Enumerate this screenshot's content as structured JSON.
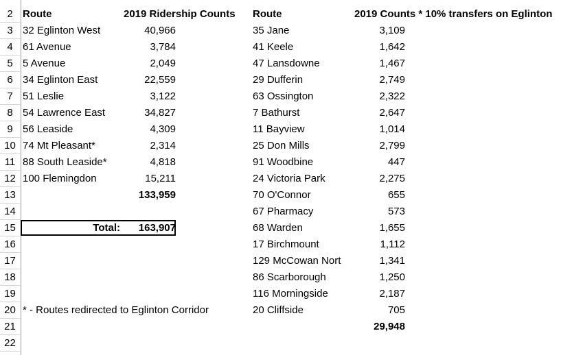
{
  "sheet": {
    "row_numbers": [
      "2",
      "3",
      "4",
      "5",
      "6",
      "7",
      "8",
      "9",
      "10",
      "11",
      "12",
      "13",
      "14",
      "15",
      "16",
      "17",
      "18",
      "19",
      "20",
      "21",
      "22"
    ],
    "headers": {
      "col_a": "Route",
      "col_b": "2019 Ridership Counts",
      "col_c": "Route",
      "col_d": "2019 Counts * 10% transfers on Eglinton"
    },
    "left_routes": [
      {
        "route": "32 Eglinton West",
        "count": "40,966"
      },
      {
        "route": "61 Avenue",
        "count": "3,784"
      },
      {
        "route": "5 Avenue",
        "count": "2,049"
      },
      {
        "route": "34 Eglinton East",
        "count": "22,559"
      },
      {
        "route": "51 Leslie",
        "count": "3,122"
      },
      {
        "route": "54 Lawrence East",
        "count": "34,827"
      },
      {
        "route": "56 Leaside",
        "count": "4,309"
      },
      {
        "route": "74 Mt Pleasant*",
        "count": "2,314"
      },
      {
        "route": "88 South Leaside*",
        "count": "4,818"
      },
      {
        "route": "100 Flemingdon",
        "count": "15,211"
      }
    ],
    "left_subtotal": "133,959",
    "total_label": "Total:",
    "total_value": "163,907",
    "footnote": "* - Routes redirected to Eglinton Corridor",
    "right_routes": [
      {
        "route": "35 Jane",
        "count": "3,109"
      },
      {
        "route": "41 Keele",
        "count": "1,642"
      },
      {
        "route": "47 Lansdowne",
        "count": "1,467"
      },
      {
        "route": "29 Dufferin",
        "count": "2,749"
      },
      {
        "route": "63 Ossington",
        "count": "2,322"
      },
      {
        "route": "7 Bathurst",
        "count": "2,647"
      },
      {
        "route": "11 Bayview",
        "count": "1,014"
      },
      {
        "route": "25 Don Mills",
        "count": "2,799"
      },
      {
        "route": "91 Woodbine",
        "count": "447"
      },
      {
        "route": "24 Victoria Park",
        "count": "2,275"
      },
      {
        "route": "70 O'Connor",
        "count": "655"
      },
      {
        "route": "67 Pharmacy",
        "count": "573"
      },
      {
        "route": "68 Warden",
        "count": "1,655"
      },
      {
        "route": "17 Birchmount",
        "count": "1,112"
      },
      {
        "route": "129 McCowan Nort",
        "count": "1,341"
      },
      {
        "route": "86 Scarborough",
        "count": "1,250"
      },
      {
        "route": "116 Morningside",
        "count": "2,187"
      },
      {
        "route": "20 Cliffside",
        "count": "705"
      }
    ],
    "right_total": "29,948"
  }
}
